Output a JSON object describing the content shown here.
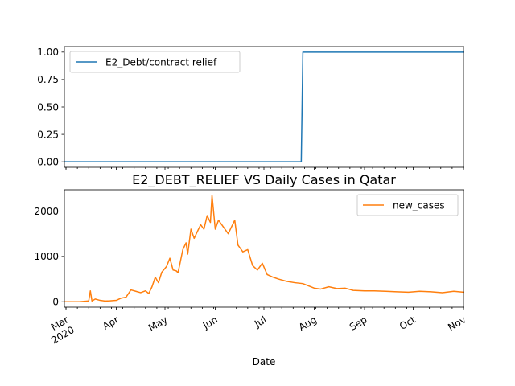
{
  "chart_data": [
    {
      "type": "line",
      "title": "",
      "xlabel": "",
      "ylabel": "",
      "ylim": [
        -0.05,
        1.05
      ],
      "yticks": [
        "0.00",
        "0.25",
        "0.50",
        "0.75",
        "1.00"
      ],
      "ytick_values": [
        0,
        0.25,
        0.5,
        0.75,
        1.0
      ],
      "xlim": [
        "2020-02-29",
        "2020-11-01"
      ],
      "legend_position": "top-left",
      "grid": false,
      "series": [
        {
          "name": "E2_Debt/contract relief",
          "color": "#1f77b4",
          "x": [
            "2020-02-29",
            "2020-07-24",
            "2020-07-25",
            "2020-11-01"
          ],
          "values": [
            0,
            0,
            1,
            1
          ]
        }
      ]
    },
    {
      "type": "line",
      "title": "E2_DEBT_RELIEF VS Daily Cases in Qatar",
      "xlabel": "Date",
      "ylabel": "",
      "ylim": [
        -120,
        2470
      ],
      "yticks": [
        "0",
        "1000",
        "2000"
      ],
      "ytick_values": [
        0,
        1000,
        2000
      ],
      "xlim": [
        "2020-02-29",
        "2020-11-01"
      ],
      "xtick_labels": [
        "Mar\n2020",
        "Apr",
        "May",
        "Jun",
        "Jul",
        "Aug",
        "Sep",
        "Oct",
        "Nov"
      ],
      "xtick_dates": [
        "2020-03-01",
        "2020-04-01",
        "2020-05-01",
        "2020-06-01",
        "2020-07-01",
        "2020-08-01",
        "2020-09-01",
        "2020-10-01",
        "2020-11-01"
      ],
      "legend_position": "top-right",
      "grid": false,
      "series": [
        {
          "name": "new_cases",
          "color": "#ff7f0e",
          "x": [
            "2020-02-29",
            "2020-03-05",
            "2020-03-10",
            "2020-03-15",
            "2020-03-16",
            "2020-03-17",
            "2020-03-19",
            "2020-03-22",
            "2020-03-25",
            "2020-03-28",
            "2020-04-01",
            "2020-04-04",
            "2020-04-07",
            "2020-04-10",
            "2020-04-13",
            "2020-04-16",
            "2020-04-19",
            "2020-04-21",
            "2020-04-23",
            "2020-04-25",
            "2020-04-27",
            "2020-04-29",
            "2020-05-02",
            "2020-05-04",
            "2020-05-06",
            "2020-05-08",
            "2020-05-09",
            "2020-05-10",
            "2020-05-12",
            "2020-05-14",
            "2020-05-15",
            "2020-05-17",
            "2020-05-19",
            "2020-05-21",
            "2020-05-23",
            "2020-05-25",
            "2020-05-27",
            "2020-05-29",
            "2020-05-30",
            "2020-06-01",
            "2020-06-03",
            "2020-06-05",
            "2020-06-07",
            "2020-06-09",
            "2020-06-11",
            "2020-06-13",
            "2020-06-15",
            "2020-06-18",
            "2020-06-21",
            "2020-06-24",
            "2020-06-27",
            "2020-06-30",
            "2020-07-03",
            "2020-07-06",
            "2020-07-10",
            "2020-07-15",
            "2020-07-20",
            "2020-07-25",
            "2020-08-01",
            "2020-08-05",
            "2020-08-10",
            "2020-08-15",
            "2020-08-20",
            "2020-08-25",
            "2020-09-01",
            "2020-09-07",
            "2020-09-14",
            "2020-09-21",
            "2020-09-28",
            "2020-10-05",
            "2020-10-12",
            "2020-10-19",
            "2020-10-26",
            "2020-11-01"
          ],
          "values": [
            0,
            0,
            1,
            18,
            240,
            15,
            60,
            30,
            15,
            20,
            30,
            80,
            100,
            260,
            230,
            200,
            240,
            180,
            330,
            540,
            420,
            650,
            780,
            960,
            700,
            680,
            640,
            800,
            1150,
            1300,
            1050,
            1600,
            1400,
            1550,
            1700,
            1600,
            1900,
            1750,
            2350,
            1600,
            1800,
            1700,
            1600,
            1500,
            1650,
            1800,
            1250,
            1100,
            1150,
            800,
            700,
            850,
            600,
            550,
            500,
            450,
            420,
            400,
            300,
            280,
            330,
            290,
            300,
            250,
            240,
            240,
            230,
            220,
            210,
            230,
            220,
            200,
            230,
            210
          ]
        }
      ]
    }
  ]
}
